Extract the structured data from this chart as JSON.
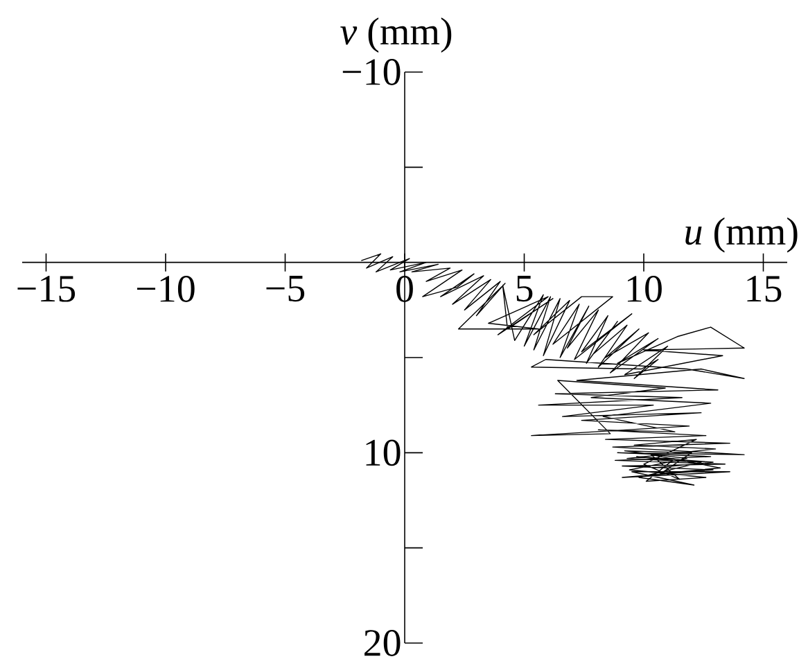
{
  "chart_data": {
    "type": "line",
    "xlabel": "*u* (mm)",
    "ylabel": "*v* (mm)",
    "xlim": [
      -16,
      16
    ],
    "ylim": [
      20,
      -10
    ],
    "xticks": [
      {
        "value": -15,
        "label": "−15"
      },
      {
        "value": -10,
        "label": "−10"
      },
      {
        "value": -5,
        "label": "−5"
      },
      0,
      5,
      10,
      15
    ],
    "yticks": [
      {
        "value": -10,
        "label": "−10"
      },
      {
        "value": -5,
        "label": null
      },
      {
        "value": 5,
        "label": null
      },
      10,
      {
        "value": 15,
        "label": null
      },
      20
    ],
    "x": [
      -1.8,
      -1.0,
      -1.6,
      -0.5,
      -1.2,
      0.2,
      -0.6,
      0.9,
      -0.2,
      1.4,
      0.3,
      1.9,
      0.9,
      2.4,
      0.75,
      2.2,
      2.9,
      1.5,
      3.3,
      2.0,
      3.6,
      2.5,
      4.0,
      3.0,
      4.2,
      2.25,
      5.6,
      3.5,
      6.0,
      3.9,
      6.2,
      4.3,
      4.1,
      4.6,
      5.8,
      5.0,
      6.1,
      5.4,
      6.5,
      5.8,
      6.9,
      5.4,
      7.4,
      8.7,
      6.2,
      7.3,
      6.5,
      7.7,
      6.8,
      8.1,
      7.1,
      9.5,
      7.4,
      8.5,
      7.6,
      8.9,
      7.9,
      9.3,
      8.1,
      9.8,
      8.4,
      10.2,
      8.6,
      10.6,
      8.9,
      11.4,
      12.8,
      14.2,
      10.0,
      13.3,
      9.2,
      11.0,
      9.6,
      10.6,
      9.9,
      5.3,
      5.9,
      11.8,
      14.2,
      12.4,
      7.2,
      13.1,
      6.3,
      11.6,
      5.6,
      7.0,
      10.4,
      6.6,
      12.4,
      7.4,
      11.9,
      5.3,
      8.6,
      6.4,
      10.9,
      7.8,
      12.8,
      8.3,
      11.3,
      8.1,
      12.6,
      8.4,
      13.6,
      8.7,
      14.2,
      8.9,
      12.8,
      8.8,
      13.4,
      9.1,
      12.9,
      9.1,
      13.6,
      9.5,
      12.1,
      9.8,
      12.4,
      9.3,
      13.0,
      9.6,
      12.2,
      10.0,
      11.5,
      10.3,
      13.2,
      10.7,
      12.0,
      9.2,
      11.8,
      9.4,
      12.6,
      10.1,
      11.2,
      9.7,
      12.9,
      10.4
    ],
    "values": [
      -0.1,
      -0.45,
      0.3,
      -0.3,
      0.5,
      -0.2,
      0.4,
      0.0,
      0.5,
      0.1,
      0.5,
      0.3,
      1.0,
      0.4,
      1.8,
      1.3,
      0.6,
      1.8,
      0.7,
      2.2,
      0.9,
      2.5,
      1.0,
      2.8,
      1.1,
      3.5,
      3.5,
      3.2,
      1.8,
      3.8,
      1.9,
      3.5,
      1.2,
      4.1,
      1.7,
      4.4,
      1.8,
      4.6,
      1.9,
      4.9,
      2.0,
      3.8,
      1.8,
      1.8,
      4.3,
      2.2,
      5.0,
      2.3,
      4.5,
      2.5,
      5.1,
      2.7,
      4.7,
      2.8,
      5.3,
      3.1,
      4.8,
      3.3,
      5.5,
      3.5,
      5.0,
      3.7,
      5.8,
      4.0,
      5.3,
      3.9,
      3.4,
      4.5,
      4.6,
      4.9,
      5.9,
      4.4,
      6.1,
      5.1,
      5.6,
      5.5,
      5.1,
      5.6,
      6.1,
      5.6,
      6.2,
      6.7,
      6.9,
      7.1,
      7.5,
      7.5,
      7.5,
      8.1,
      7.9,
      8.3,
      8.6,
      9.1,
      9.0,
      6.2,
      6.6,
      7.1,
      7.4,
      8.1,
      8.9,
      8.8,
      9.1,
      9.3,
      9.5,
      9.7,
      10.1,
      10.0,
      10.2,
      10.4,
      10.6,
      10.7,
      10.9,
      11.3,
      11.0,
      11.0,
      11.7,
      11.3,
      10.5,
      10.3,
      9.8,
      9.6,
      9.3,
      10.6,
      11.4,
      10.1,
      10.8,
      11.1,
      10.0,
      9.9,
      10.3,
      10.9,
      11.3,
      11.5,
      10.4,
      10.2,
      10.5,
      10.8
    ],
    "color": "#000000",
    "marker": "none",
    "line_style": "solid"
  }
}
